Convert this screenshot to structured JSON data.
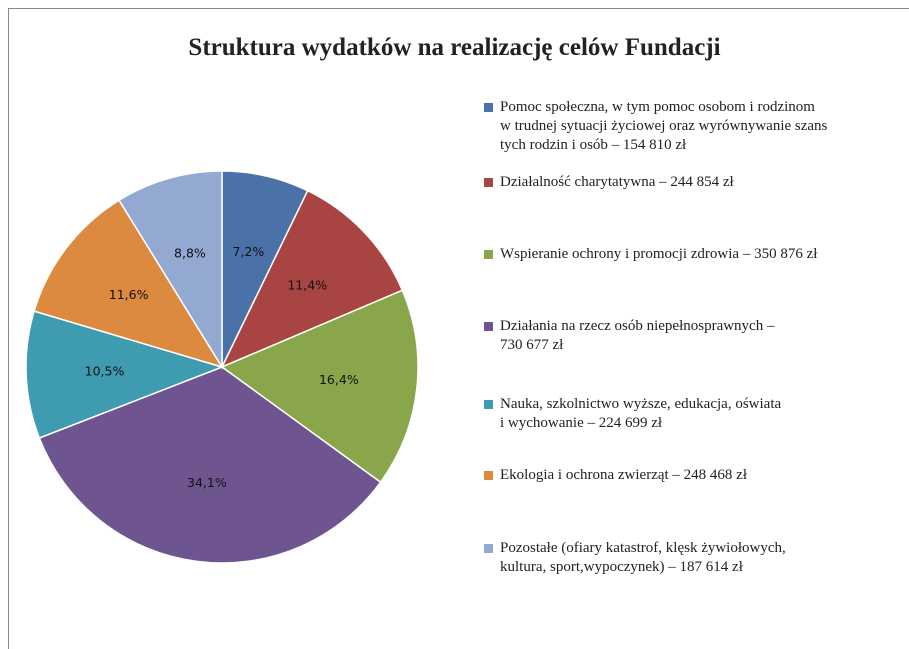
{
  "chart_data": {
    "type": "pie",
    "title": "Struktura wydatków na realizację celów Fundacji",
    "categories": [
      "Pomoc społeczna, w tym pomoc osobom i rodzinom\nw trudnej sytuacji życiowej oraz wyrównywanie szans\ntych rodzin i osób – 154 810 zł",
      "Działalność charytatywna – 244 854 zł",
      "Wspieranie ochrony i promocji zdrowia – 350 876 zł",
      "Działania na rzecz osób niepełnosprawnych –\n730 677 zł",
      "Nauka, szkolnictwo wyższe, edukacja, oświata\ni wychowanie – 224 699 zł",
      "Ekologia i ochrona zwierząt – 248 468 zł",
      "Pozostałe (ofiary katastrof, klęsk żywiołowych,\nkultura, sport,wypoczynek) – 187 614 zł"
    ],
    "values": [
      7.2,
      11.4,
      16.4,
      34.1,
      10.5,
      11.6,
      8.8
    ],
    "value_labels": [
      "7,2%",
      "11,4%",
      "16,4%",
      "34,1%",
      "10,5%",
      "11,6%",
      "8,8%"
    ],
    "colors": [
      "#4a72a8",
      "#a84543",
      "#89a64b",
      "#6f5590",
      "#3f9bb0",
      "#dc8a3f",
      "#93a9d2"
    ]
  }
}
